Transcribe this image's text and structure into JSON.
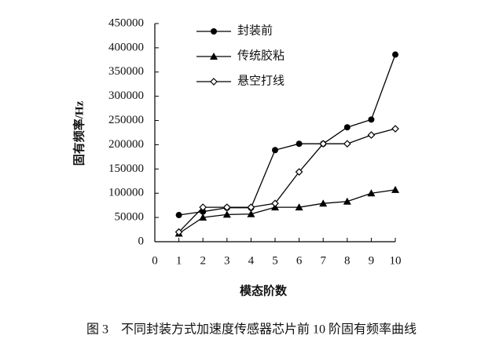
{
  "chart_data": {
    "type": "line",
    "x_label": "模态阶数",
    "y_label": "固有频率/Hz",
    "caption": "图 3　不同封装方式加速度传感器芯片前 10 阶固有频率曲线",
    "x": [
      1,
      2,
      3,
      4,
      5,
      6,
      7,
      8,
      9,
      10
    ],
    "xlim": [
      0,
      10
    ],
    "xticks": [
      0,
      1,
      2,
      3,
      4,
      5,
      6,
      7,
      8,
      9,
      10
    ],
    "ylim": [
      0,
      450000
    ],
    "yticks": [
      0,
      50000,
      100000,
      150000,
      200000,
      250000,
      300000,
      350000,
      400000,
      450000
    ],
    "grid": false,
    "legend": "top",
    "series": [
      {
        "name": "封装前",
        "color": "#000000",
        "marker": "circle",
        "values": [
          55000,
          62000,
          70000,
          70000,
          189000,
          202000,
          202000,
          236000,
          252000,
          386000
        ]
      },
      {
        "name": "传统胶粘",
        "color": "#000000",
        "marker": "triangle",
        "values": [
          17000,
          50000,
          56000,
          57000,
          71000,
          71000,
          79000,
          83000,
          100000,
          107000
        ]
      },
      {
        "name": "悬空打线",
        "color": "#000000",
        "marker": "diamond",
        "values": [
          20000,
          71000,
          71000,
          71000,
          79000,
          144000,
          202000,
          202000,
          220000,
          233000
        ]
      }
    ]
  }
}
